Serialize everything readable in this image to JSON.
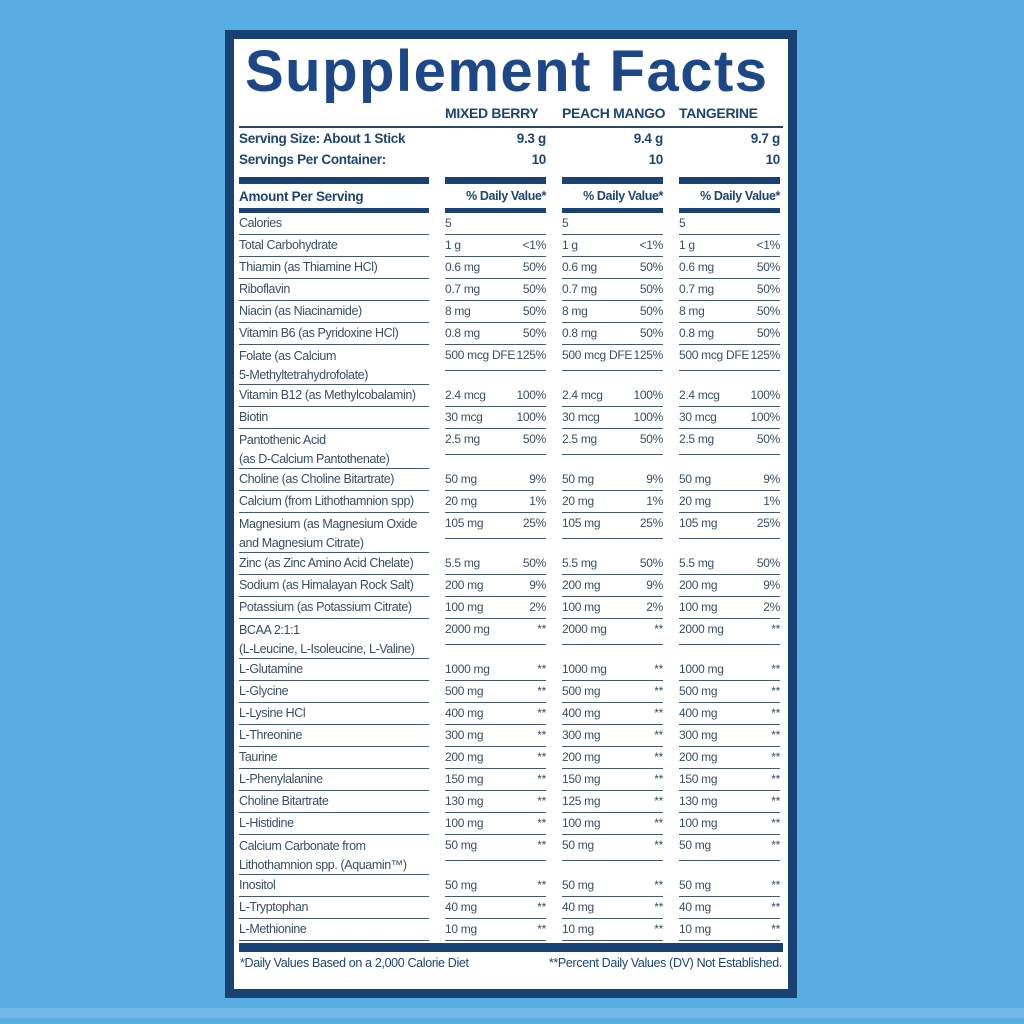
{
  "title": "Supplement Facts",
  "flavors": [
    "MIXED BERRY",
    "PEACH MANGO",
    "TANGERINE"
  ],
  "serving_rows": [
    {
      "label": "Serving Size: About 1 Stick",
      "values": [
        "9.3 g",
        "9.4 g",
        "9.7 g"
      ]
    },
    {
      "label": "Servings Per Container:",
      "values": [
        "10",
        "10",
        "10"
      ]
    }
  ],
  "amount_per_serving_label": "Amount Per Serving",
  "daily_value_header": "% Daily Value*",
  "rows": [
    {
      "name": "Calories",
      "cells": [
        [
          "5",
          ""
        ],
        [
          "5",
          ""
        ],
        [
          "5",
          ""
        ]
      ]
    },
    {
      "name": "Total Carbohydrate",
      "cells": [
        [
          "1 g",
          "<1%"
        ],
        [
          "1 g",
          "<1%"
        ],
        [
          "1 g",
          "<1%"
        ]
      ]
    },
    {
      "name": "Thiamin (as Thiamine HCl)",
      "cells": [
        [
          "0.6 mg",
          "50%"
        ],
        [
          "0.6 mg",
          "50%"
        ],
        [
          "0.6 mg",
          "50%"
        ]
      ]
    },
    {
      "name": "Riboflavin",
      "cells": [
        [
          "0.7 mg",
          "50%"
        ],
        [
          "0.7 mg",
          "50%"
        ],
        [
          "0.7 mg",
          "50%"
        ]
      ]
    },
    {
      "name": "Niacin (as Niacinamide)",
      "cells": [
        [
          "8 mg",
          "50%"
        ],
        [
          "8 mg",
          "50%"
        ],
        [
          "8 mg",
          "50%"
        ]
      ]
    },
    {
      "name": "Vitamin B6 (as Pyridoxine HCl)",
      "cells": [
        [
          "0.8 mg",
          "50%"
        ],
        [
          "0.8 mg",
          "50%"
        ],
        [
          "0.8 mg",
          "50%"
        ]
      ]
    },
    {
      "name": "Folate (as Calcium\n5-Methyltetrahydrofolate)",
      "cells": [
        [
          "500 mcg DFE",
          "125%"
        ],
        [
          "500 mcg DFE",
          "125%"
        ],
        [
          "500 mcg DFE",
          "125%"
        ]
      ]
    },
    {
      "name": "Vitamin B12 (as Methylcobalamin)",
      "cells": [
        [
          "2.4 mcg",
          "100%"
        ],
        [
          "2.4 mcg",
          "100%"
        ],
        [
          "2.4 mcg",
          "100%"
        ]
      ]
    },
    {
      "name": "Biotin",
      "cells": [
        [
          "30 mcg",
          "100%"
        ],
        [
          "30 mcg",
          "100%"
        ],
        [
          "30 mcg",
          "100%"
        ]
      ]
    },
    {
      "name": "Pantothenic Acid\n(as D-Calcium Pantothenate)",
      "cells": [
        [
          "2.5 mg",
          "50%"
        ],
        [
          "2.5 mg",
          "50%"
        ],
        [
          "2.5 mg",
          "50%"
        ]
      ]
    },
    {
      "name": "Choline (as Choline Bitartrate)",
      "cells": [
        [
          "50 mg",
          "9%"
        ],
        [
          "50 mg",
          "9%"
        ],
        [
          "50 mg",
          "9%"
        ]
      ]
    },
    {
      "name": "Calcium (from Lithothamnion spp)",
      "cells": [
        [
          "20 mg",
          "1%"
        ],
        [
          "20 mg",
          "1%"
        ],
        [
          "20 mg",
          "1%"
        ]
      ]
    },
    {
      "name": "Magnesium (as Magnesium Oxide\nand Magnesium Citrate)",
      "cells": [
        [
          "105 mg",
          "25%"
        ],
        [
          "105 mg",
          "25%"
        ],
        [
          "105 mg",
          "25%"
        ]
      ]
    },
    {
      "name": "Zinc (as Zinc Amino Acid Chelate)",
      "cells": [
        [
          "5.5 mg",
          "50%"
        ],
        [
          "5.5 mg",
          "50%"
        ],
        [
          "5.5 mg",
          "50%"
        ]
      ]
    },
    {
      "name": "Sodium (as Himalayan Rock Salt)",
      "cells": [
        [
          "200 mg",
          "9%"
        ],
        [
          "200 mg",
          "9%"
        ],
        [
          "200 mg",
          "9%"
        ]
      ]
    },
    {
      "name": "Potassium (as Potassium Citrate)",
      "cells": [
        [
          "100 mg",
          "2%"
        ],
        [
          "100 mg",
          "2%"
        ],
        [
          "100 mg",
          "2%"
        ]
      ]
    },
    {
      "name": "BCAA 2:1:1\n(L-Leucine, L-Isoleucine, L-Valine)",
      "cells": [
        [
          "2000 mg",
          "**"
        ],
        [
          "2000 mg",
          "**"
        ],
        [
          "2000 mg",
          "**"
        ]
      ]
    },
    {
      "name": "L-Glutamine",
      "cells": [
        [
          "1000 mg",
          "**"
        ],
        [
          "1000 mg",
          "**"
        ],
        [
          "1000 mg",
          "**"
        ]
      ]
    },
    {
      "name": "L-Glycine",
      "cells": [
        [
          "500 mg",
          "**"
        ],
        [
          "500 mg",
          "**"
        ],
        [
          "500 mg",
          "**"
        ]
      ]
    },
    {
      "name": "L-Lysine HCl",
      "cells": [
        [
          "400 mg",
          "**"
        ],
        [
          "400 mg",
          "**"
        ],
        [
          "400 mg",
          "**"
        ]
      ]
    },
    {
      "name": "L-Threonine",
      "cells": [
        [
          "300 mg",
          "**"
        ],
        [
          "300 mg",
          "**"
        ],
        [
          "300 mg",
          "**"
        ]
      ]
    },
    {
      "name": "Taurine",
      "cells": [
        [
          "200 mg",
          "**"
        ],
        [
          "200 mg",
          "**"
        ],
        [
          "200 mg",
          "**"
        ]
      ]
    },
    {
      "name": "L-Phenylalanine",
      "cells": [
        [
          "150 mg",
          "**"
        ],
        [
          "150 mg",
          "**"
        ],
        [
          "150 mg",
          "**"
        ]
      ]
    },
    {
      "name": "Choline Bitartrate",
      "cells": [
        [
          "130 mg",
          "**"
        ],
        [
          "125 mg",
          "**"
        ],
        [
          "130 mg",
          "**"
        ]
      ]
    },
    {
      "name": "L-Histidine",
      "cells": [
        [
          "100 mg",
          "**"
        ],
        [
          "100 mg",
          "**"
        ],
        [
          "100 mg",
          "**"
        ]
      ]
    },
    {
      "name": "Calcium Carbonate from\nLithothamnion spp. (Aquamin™)",
      "cells": [
        [
          "50 mg",
          "**"
        ],
        [
          "50 mg",
          "**"
        ],
        [
          "50 mg",
          "**"
        ]
      ]
    },
    {
      "name": "Inositol",
      "cells": [
        [
          "50 mg",
          "**"
        ],
        [
          "50 mg",
          "**"
        ],
        [
          "50 mg",
          "**"
        ]
      ]
    },
    {
      "name": "L-Tryptophan",
      "cells": [
        [
          "40 mg",
          "**"
        ],
        [
          "40 mg",
          "**"
        ],
        [
          "40 mg",
          "**"
        ]
      ]
    },
    {
      "name": "L-Methionine",
      "cells": [
        [
          "10 mg",
          "**"
        ],
        [
          "10 mg",
          "**"
        ],
        [
          "10 mg",
          "**"
        ]
      ]
    }
  ],
  "footnotes": {
    "left": "*Daily Values Based on a 2,000 Calorie Diet",
    "right": "**Percent Daily Values (DV) Not Established."
  },
  "colors": {
    "background": "#58ade3",
    "panel_navy": "#1a4173",
    "title_navy": "#1d4787",
    "header_text": "#1e4470",
    "body_text": "#3a4e63",
    "row_line": "#45586d"
  }
}
